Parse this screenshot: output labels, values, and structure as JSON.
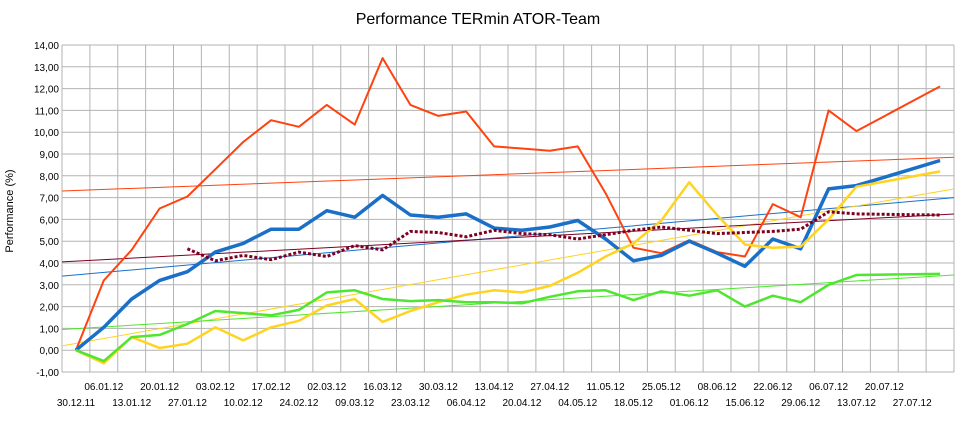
{
  "chart_data": {
    "type": "line",
    "title": "Performance TERmin ATOR-Team",
    "ylabel": "Performance (%)",
    "xlabel": "",
    "ylim": [
      -1,
      14
    ],
    "yticks": [
      "-1,00",
      "0,00",
      "1,00",
      "2,00",
      "3,00",
      "4,00",
      "5,00",
      "6,00",
      "7,00",
      "8,00",
      "9,00",
      "10,00",
      "11,00",
      "12,00",
      "13,00",
      "14,00"
    ],
    "x_tick_labels_upper": [
      "06.01.12",
      "20.01.12",
      "03.02.12",
      "17.02.12",
      "02.03.12",
      "16.03.12",
      "30.03.12",
      "13.04.12",
      "27.04.12",
      "11.05.12",
      "25.05.12",
      "08.06.12",
      "22.06.12",
      "06.07.12",
      "20.07.12"
    ],
    "x_tick_labels_lower": [
      "30.12.11",
      "13.01.12",
      "27.01.12",
      "10.02.12",
      "24.02.12",
      "09.03.12",
      "23.03.12",
      "06.04.12",
      "20.04.12",
      "04.05.12",
      "18.05.12",
      "01.06.12",
      "15.06.12",
      "29.06.12",
      "13.07.12",
      "27.07.12"
    ],
    "grid": true,
    "legend": "none",
    "colors": {
      "orange": "#ff420e",
      "blue": "#1a6fc9",
      "yellow": "#ffd320",
      "green": "#4ee62f",
      "maroon": "#7e0021",
      "grid": "#b3b3b3"
    },
    "series": [
      {
        "color": "#ff420e",
        "width": 2,
        "style": "solid",
        "values": [
          0,
          3.2,
          4.6,
          6.5,
          7.05,
          8.3,
          9.55,
          10.55,
          10.25,
          11.25,
          10.35,
          13.4,
          11.25,
          10.75,
          10.95,
          9.35,
          9.25,
          9.15,
          9.35,
          7.2,
          4.7,
          4.45,
          5.05,
          4.5,
          4.3,
          6.7,
          6.1,
          11.0,
          10.05,
          null,
          null,
          12.1
        ]
      },
      {
        "color": "#1a6fc9",
        "width": 3.5,
        "style": "solid",
        "values": [
          0,
          1.05,
          2.35,
          3.2,
          3.6,
          4.5,
          4.9,
          5.55,
          5.55,
          6.4,
          6.1,
          7.1,
          6.2,
          6.1,
          6.25,
          5.6,
          5.5,
          5.65,
          5.95,
          5.1,
          4.1,
          4.35,
          5.0,
          4.45,
          3.85,
          5.1,
          4.65,
          7.4,
          7.55,
          null,
          null,
          8.7
        ]
      },
      {
        "color": "#ffd320",
        "width": 2.5,
        "style": "solid",
        "values": [
          0,
          -0.6,
          0.6,
          0.1,
          0.3,
          1.05,
          0.45,
          1.05,
          1.35,
          2.05,
          2.35,
          1.3,
          1.8,
          2.2,
          2.55,
          2.75,
          2.65,
          2.95,
          3.55,
          4.3,
          4.9,
          5.95,
          7.7,
          6.2,
          4.85,
          4.7,
          4.75,
          6.0,
          7.5,
          null,
          null,
          8.2
        ]
      },
      {
        "color": "#4ee62f",
        "width": 2.5,
        "style": "solid",
        "values": [
          0,
          -0.5,
          0.6,
          0.7,
          1.2,
          1.8,
          1.7,
          1.6,
          1.85,
          2.65,
          2.75,
          2.35,
          2.25,
          2.3,
          2.2,
          2.2,
          2.15,
          2.45,
          2.7,
          2.75,
          2.3,
          2.7,
          2.5,
          2.75,
          2.0,
          2.5,
          2.2,
          3.0,
          3.45,
          null,
          null,
          3.5
        ]
      },
      {
        "color": "#7e0021",
        "width": 3,
        "style": "dotted",
        "values": [
          null,
          null,
          null,
          null,
          4.65,
          4.1,
          4.35,
          4.15,
          4.5,
          4.3,
          4.8,
          4.6,
          5.45,
          5.4,
          5.2,
          5.5,
          5.35,
          5.3,
          5.1,
          5.3,
          5.5,
          5.65,
          5.5,
          5.35,
          5.4,
          5.45,
          5.55,
          6.35,
          6.25,
          null,
          null,
          6.2
        ]
      }
    ],
    "trendlines": [
      {
        "color": "#ff420e",
        "y_start": 7.3,
        "y_end": 8.85
      },
      {
        "color": "#1a6fc9",
        "y_start": 3.4,
        "y_end": 7.0
      },
      {
        "color": "#ffd320",
        "y_start": 0.2,
        "y_end": 7.4
      },
      {
        "color": "#4ee62f",
        "y_start": 0.95,
        "y_end": 3.45
      },
      {
        "color": "#7e0021",
        "y_start": 4.05,
        "y_end": 6.25
      }
    ]
  }
}
